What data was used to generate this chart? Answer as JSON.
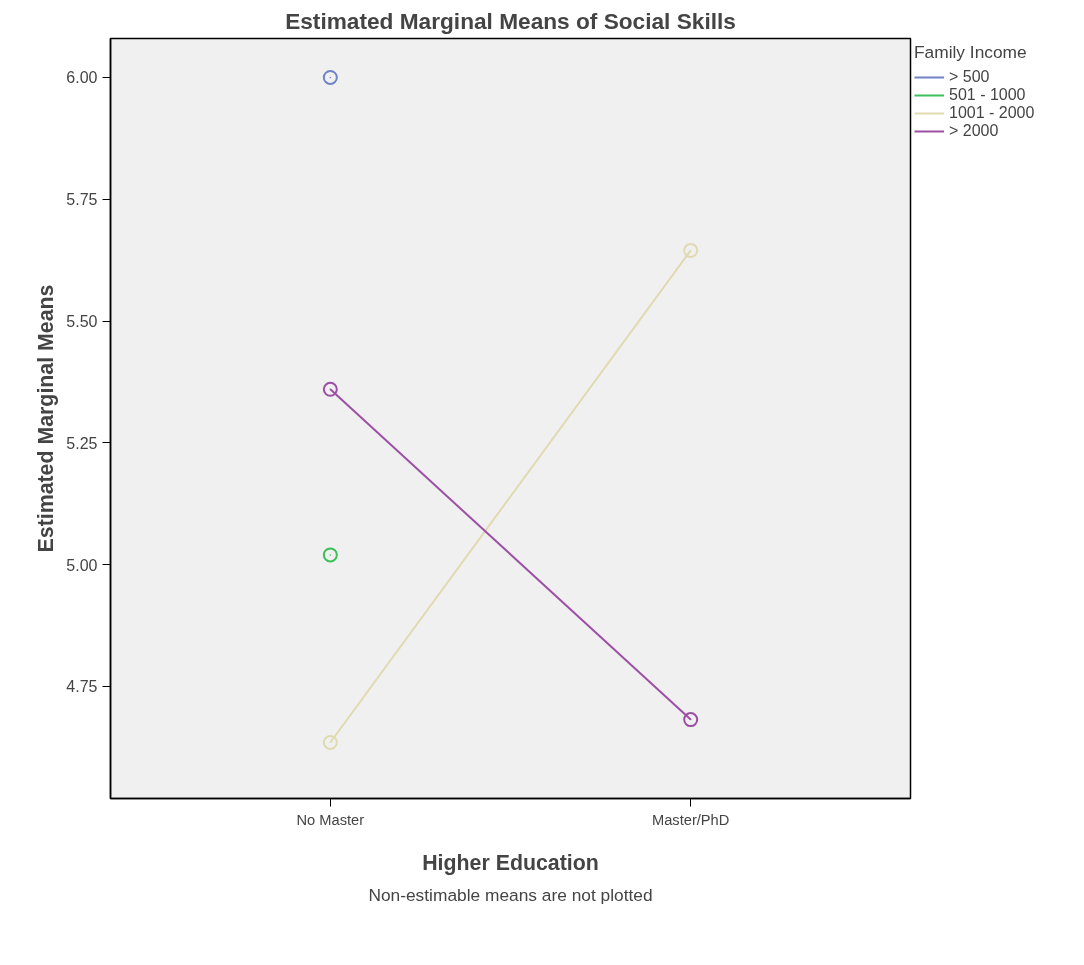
{
  "chart_data": {
    "type": "line",
    "title": "Estimated Marginal Means of Social Skills",
    "xlabel": "Higher Education",
    "ylabel": "Estimated Marginal Means",
    "legend_title": "Family Income",
    "categories": [
      "No Master",
      "Master/PhD"
    ],
    "series": [
      {
        "name": "> 500",
        "color": "#7083c8",
        "values": [
          6.0,
          null
        ]
      },
      {
        "name": "501 - 1000",
        "color": "#3cc05a",
        "values": [
          5.02,
          null
        ]
      },
      {
        "name": "1001 - 2000",
        "color": "#e0dab0",
        "values": [
          4.635,
          5.645
        ]
      },
      {
        "name": "> 2000",
        "color": "#9c4fa3",
        "values": [
          5.36,
          4.682
        ]
      }
    ],
    "ylim": [
      4.52,
      6.08
    ],
    "yticks": [
      {
        "value": 4.75,
        "label": "4.75"
      },
      {
        "value": 5.0,
        "label": "5.00"
      },
      {
        "value": 5.25,
        "label": "5.25"
      },
      {
        "value": 5.5,
        "label": "5.50"
      },
      {
        "value": 5.75,
        "label": "5.75"
      },
      {
        "value": 6.0,
        "label": "6.00"
      }
    ],
    "marker": "circle",
    "grid": false,
    "legend": "right",
    "annotations": [
      "Non-estimable means are not plotted"
    ]
  }
}
